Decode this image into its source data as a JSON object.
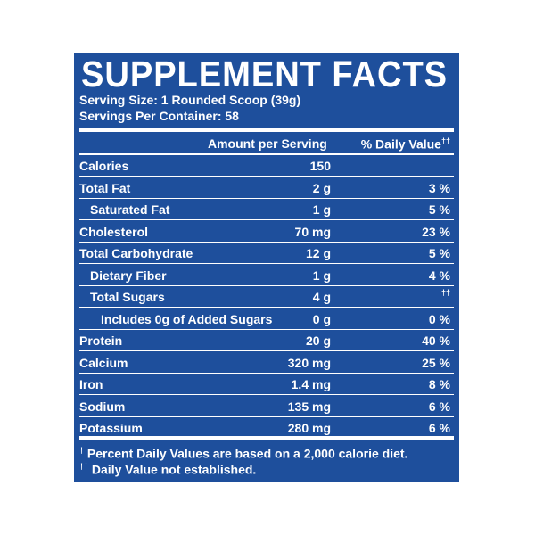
{
  "title": "SUPPLEMENT FACTS",
  "serving_size": "Serving Size: 1 Rounded Scoop (39g)",
  "servings_per_container": "Servings Per Container: 58",
  "header": {
    "amount_label": "Amount per Serving",
    "dv_label": "% Daily Value",
    "dv_mark": "††"
  },
  "nutrients": [
    {
      "name": "Calories",
      "amount": "150",
      "dv": "",
      "indent": 0
    },
    {
      "name": "Total Fat",
      "amount": "2 g",
      "dv": "3 %",
      "indent": 0
    },
    {
      "name": "Saturated Fat",
      "amount": "1 g",
      "dv": "5 %",
      "indent": 1
    },
    {
      "name": "Cholesterol",
      "amount": "70 mg",
      "dv": "23 %",
      "indent": 0
    },
    {
      "name": "Total Carbohydrate",
      "amount": "12 g",
      "dv": "5 %",
      "indent": 0
    },
    {
      "name": "Dietary Fiber",
      "amount": "1 g",
      "dv": "4 %",
      "indent": 1
    },
    {
      "name": "Total Sugars",
      "amount": "4 g",
      "dv": "††",
      "indent": 1
    },
    {
      "name": "Includes 0g of Added Sugars",
      "amount": "0 g",
      "dv": "0 %",
      "indent": 2
    },
    {
      "name": "Protein",
      "amount": "20 g",
      "dv": "40 %",
      "indent": 0
    },
    {
      "name": "Calcium",
      "amount": "320 mg",
      "dv": "25 %",
      "indent": 0
    },
    {
      "name": "Iron",
      "amount": "1.4 mg",
      "dv": "8 %",
      "indent": 0
    },
    {
      "name": "Sodium",
      "amount": "135 mg",
      "dv": "6 %",
      "indent": 0
    },
    {
      "name": "Potassium",
      "amount": "280 mg",
      "dv": "6 %",
      "indent": 0
    }
  ],
  "footnotes": [
    {
      "mark": "†",
      "text": " Percent Daily Values are based on a 2,000 calorie diet."
    },
    {
      "mark": "††",
      "text": " Daily Value not established."
    }
  ],
  "colors": {
    "panel": "#1e4f9c",
    "text": "#ffffff",
    "background": "#ffffff"
  }
}
